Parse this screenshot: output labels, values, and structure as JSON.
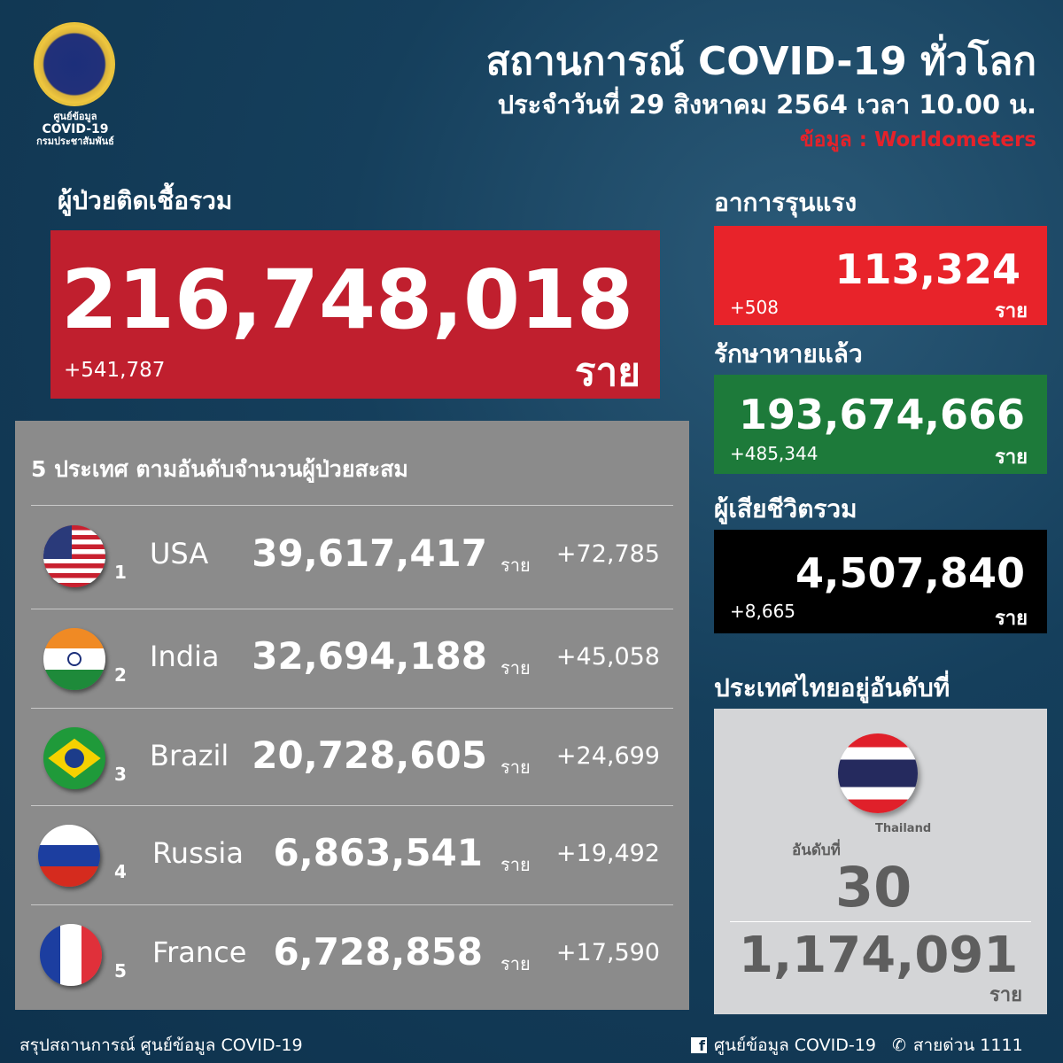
{
  "logo": {
    "line1": "ศูนย์ข้อมูล",
    "line2": "COVID-19",
    "line3": "กรมประชาสัมพันธ์"
  },
  "header": {
    "title": "สถานการณ์ COVID-19 ทั่วโลก",
    "date": "ประจำวันที่ 29 สิงหาคม 2564 เวลา 10.00 น.",
    "source": "ข้อมูล : Worldometers"
  },
  "unit": "ราย",
  "total_cases": {
    "label": "ผู้ป่วยติดเชื้อรวม",
    "value": "216,748,018",
    "delta": "+541,787",
    "color": "#c01f2e"
  },
  "severe": {
    "label": "อาการรุนแรง",
    "value": "113,324",
    "delta": "+508",
    "color": "#e8232a"
  },
  "recovered": {
    "label": "รักษาหายแล้ว",
    "value": "193,674,666",
    "delta": "+485,344",
    "color": "#1d7a3a"
  },
  "deaths": {
    "label": "ผู้เสียชีวิตรวม",
    "value": "4,507,840",
    "delta": "+8,665",
    "color": "#000000"
  },
  "top5": {
    "title": "5 ประเทศ ตามอันดับจำนวนผู้ป่วยสะสม",
    "rows": [
      {
        "rank": "1",
        "country": "USA",
        "value": "39,617,417",
        "delta": "+72,785",
        "flag": "usa-flag"
      },
      {
        "rank": "2",
        "country": "India",
        "value": "32,694,188",
        "delta": "+45,058",
        "flag": "india-flag"
      },
      {
        "rank": "3",
        "country": "Brazil",
        "value": "20,728,605",
        "delta": "+24,699",
        "flag": "brazil-flag"
      },
      {
        "rank": "4",
        "country": "Russia",
        "value": "6,863,541",
        "delta": "+19,492",
        "flag": "russia-flag"
      },
      {
        "rank": "5",
        "country": "France",
        "value": "6,728,858",
        "delta": "+17,590",
        "flag": "france-flag"
      }
    ]
  },
  "thailand": {
    "label": "ประเทศไทยอยู่อันดับที่",
    "country": "Thailand",
    "rank_label": "อันดับที่",
    "rank": "30",
    "value": "1,174,091"
  },
  "footer": {
    "left": "สรุปสถานการณ์ ศูนย์ข้อมูล COVID-19",
    "facebook": "ศูนย์ข้อมูล COVID-19",
    "hotline": "สายด่วน 1111"
  }
}
